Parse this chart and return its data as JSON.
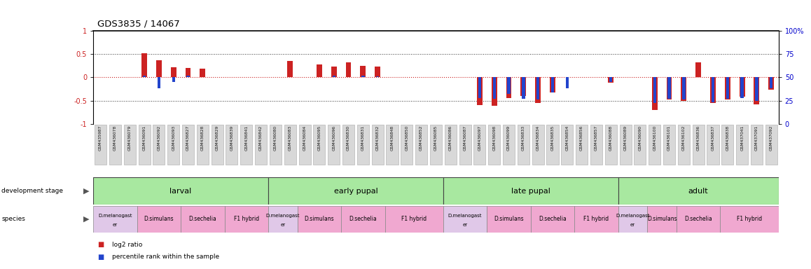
{
  "title": "GDS3835 / 14067",
  "samples": [
    "GSM435987",
    "GSM436078",
    "GSM436079",
    "GSM436091",
    "GSM436092",
    "GSM436093",
    "GSM436827",
    "GSM436828",
    "GSM436829",
    "GSM436839",
    "GSM436841",
    "GSM436842",
    "GSM436080",
    "GSM436083",
    "GSM436084",
    "GSM436095",
    "GSM436096",
    "GSM436830",
    "GSM436831",
    "GSM436832",
    "GSM436848",
    "GSM436850",
    "GSM436852",
    "GSM436085",
    "GSM436086",
    "GSM436087",
    "GSM436097",
    "GSM436098",
    "GSM436099",
    "GSM436833",
    "GSM436834",
    "GSM436835",
    "GSM436854",
    "GSM436856",
    "GSM436857",
    "GSM436088",
    "GSM436089",
    "GSM436090",
    "GSM436100",
    "GSM436101",
    "GSM436102",
    "GSM436836",
    "GSM436837",
    "GSM436838",
    "GSM437041",
    "GSM437091",
    "GSM437092"
  ],
  "log2_ratio": [
    0.0,
    0.0,
    0.0,
    0.52,
    0.37,
    0.22,
    0.2,
    0.18,
    0.0,
    0.0,
    0.0,
    0.0,
    0.0,
    0.35,
    0.0,
    0.28,
    0.23,
    0.32,
    0.25,
    0.23,
    0.0,
    0.0,
    0.0,
    0.0,
    0.0,
    0.0,
    -0.6,
    -0.62,
    -0.45,
    -0.4,
    -0.55,
    -0.33,
    0.0,
    0.0,
    0.0,
    -0.12,
    0.0,
    0.0,
    -0.7,
    -0.48,
    -0.5,
    0.32,
    -0.55,
    -0.47,
    -0.42,
    -0.58,
    -0.27
  ],
  "percentile": [
    50,
    50,
    50,
    52,
    38,
    45,
    52,
    50,
    50,
    50,
    50,
    50,
    50,
    50,
    50,
    50,
    52,
    50,
    52,
    51,
    50,
    50,
    50,
    50,
    50,
    50,
    28,
    27,
    32,
    27,
    26,
    34,
    38,
    50,
    50,
    45,
    50,
    50,
    22,
    27,
    26,
    50,
    23,
    27,
    28,
    25,
    38
  ],
  "dev_stages": [
    {
      "label": "larval",
      "start": 0,
      "end": 11
    },
    {
      "label": "early pupal",
      "start": 12,
      "end": 23
    },
    {
      "label": "late pupal",
      "start": 24,
      "end": 35
    },
    {
      "label": "adult",
      "start": 36,
      "end": 46
    }
  ],
  "species_groups": [
    {
      "label": "D.melanogaster",
      "is_mel": true,
      "start": 0,
      "end": 2
    },
    {
      "label": "D.simulans",
      "is_mel": false,
      "start": 3,
      "end": 5
    },
    {
      "label": "D.sechelia",
      "is_mel": false,
      "start": 6,
      "end": 8
    },
    {
      "label": "F1 hybrid",
      "is_mel": false,
      "start": 9,
      "end": 11
    },
    {
      "label": "D.melanogaster",
      "is_mel": true,
      "start": 12,
      "end": 13
    },
    {
      "label": "D.simulans",
      "is_mel": false,
      "start": 14,
      "end": 16
    },
    {
      "label": "D.sechelia",
      "is_mel": false,
      "start": 17,
      "end": 19
    },
    {
      "label": "F1 hybrid",
      "is_mel": false,
      "start": 20,
      "end": 23
    },
    {
      "label": "D.melanogaster",
      "is_mel": true,
      "start": 24,
      "end": 26
    },
    {
      "label": "D.simulans",
      "is_mel": false,
      "start": 27,
      "end": 29
    },
    {
      "label": "D.sechelia",
      "is_mel": false,
      "start": 30,
      "end": 32
    },
    {
      "label": "F1 hybrid",
      "is_mel": false,
      "start": 33,
      "end": 35
    },
    {
      "label": "D.melanogaster",
      "is_mel": true,
      "start": 36,
      "end": 37
    },
    {
      "label": "D.simulans",
      "is_mel": false,
      "start": 38,
      "end": 39
    },
    {
      "label": "D.sechelia",
      "is_mel": false,
      "start": 40,
      "end": 42
    },
    {
      "label": "F1 hybrid",
      "is_mel": false,
      "start": 43,
      "end": 46
    }
  ],
  "red_color": "#cc2222",
  "blue_color": "#2244cc",
  "background": "#ffffff",
  "ylim": [
    -1.0,
    1.0
  ],
  "yticks_left": [
    -1,
    -0.5,
    0,
    0.5,
    1
  ],
  "yticks_right": [
    0,
    25,
    50,
    75,
    100
  ],
  "stage_green": "#a8e8a0",
  "species_mel_color": "#e0c8e8",
  "species_other_color": "#f0a8d0",
  "xtick_bg": "#d8d8d8",
  "stage_border": "#444444",
  "species_border": "#888888"
}
